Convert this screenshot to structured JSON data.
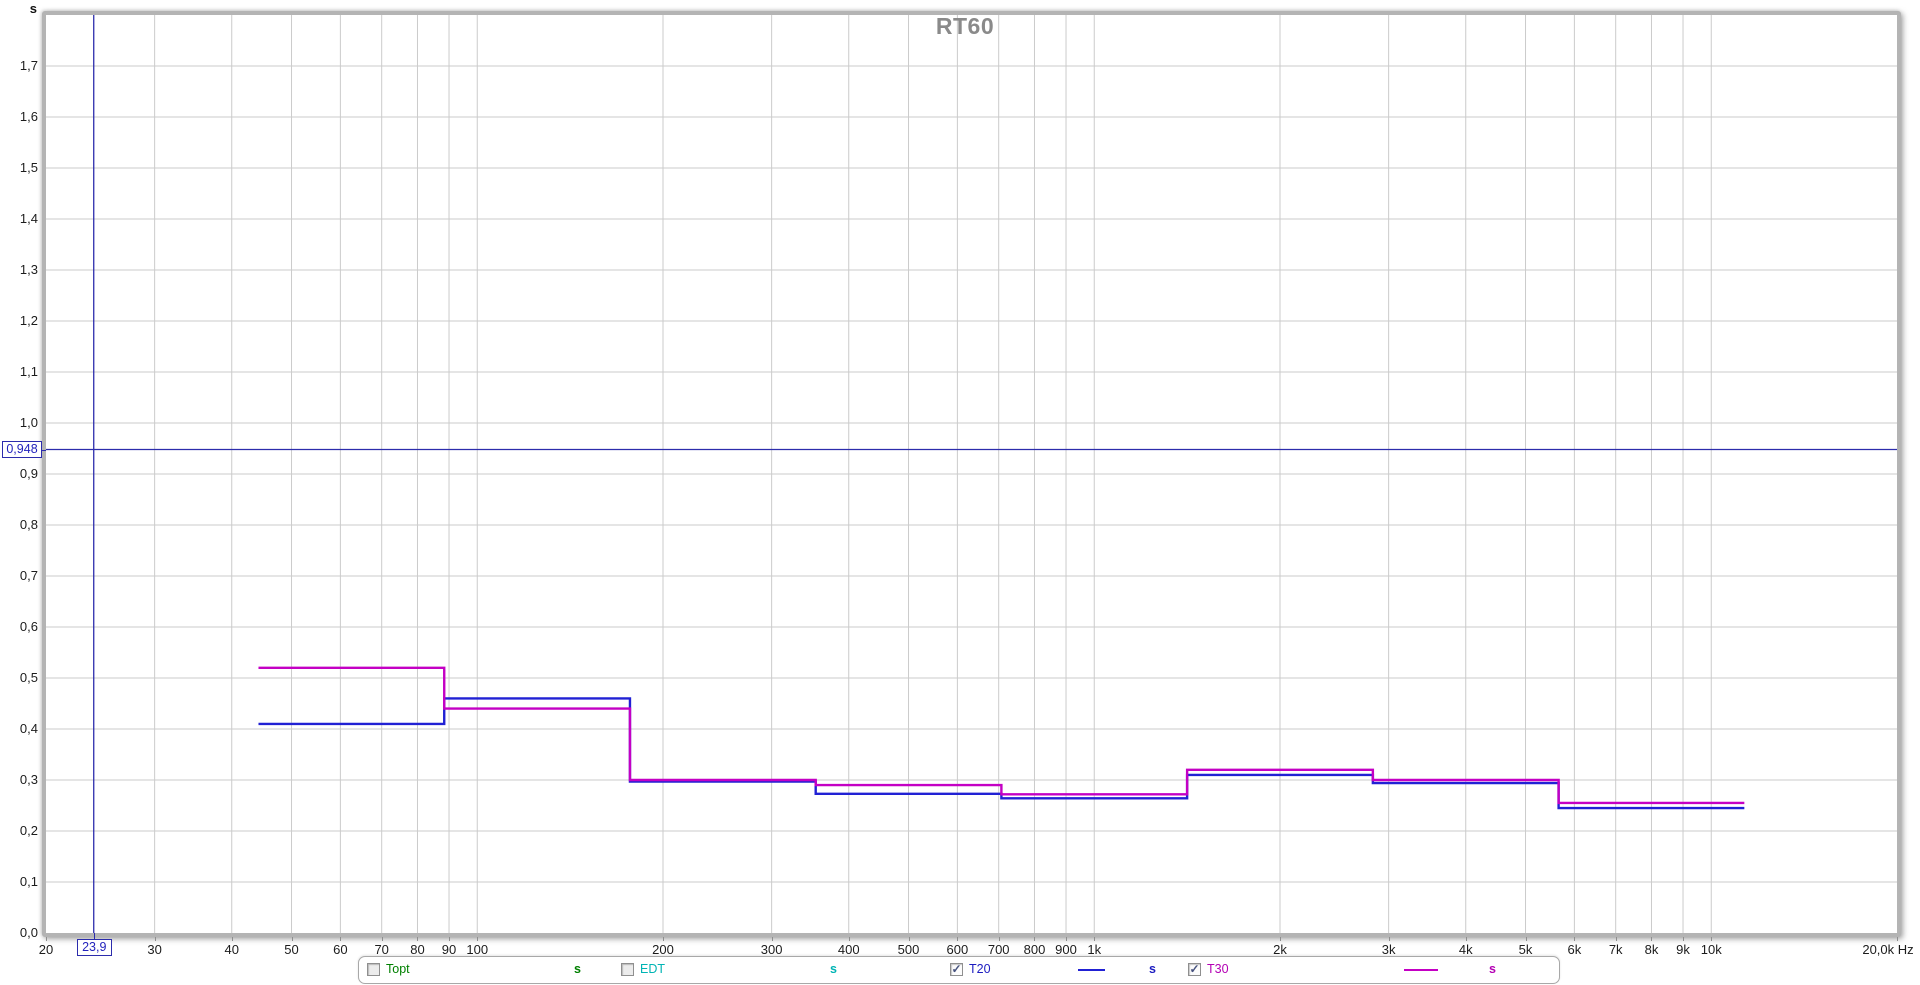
{
  "chart_data": {
    "type": "line",
    "title": "RT60",
    "title_color": "#8a8a8a",
    "y_axis_unit_label": "s",
    "x_axis_unit_label": "Hz",
    "x_scale": "log",
    "xlim_hz": [
      20,
      20000
    ],
    "ylim_s": [
      0,
      1.8
    ],
    "grid_color": "#cbcbcb",
    "grid": true,
    "y_ticks": [
      {
        "v": 0.0,
        "label": "0,0"
      },
      {
        "v": 0.1,
        "label": "0,1"
      },
      {
        "v": 0.2,
        "label": "0,2"
      },
      {
        "v": 0.3,
        "label": "0,3"
      },
      {
        "v": 0.4,
        "label": "0,4"
      },
      {
        "v": 0.5,
        "label": "0,5"
      },
      {
        "v": 0.6,
        "label": "0,6"
      },
      {
        "v": 0.7,
        "label": "0,7"
      },
      {
        "v": 0.8,
        "label": "0,8"
      },
      {
        "v": 0.9,
        "label": "0,9"
      },
      {
        "v": 1.0,
        "label": "1,0"
      },
      {
        "v": 1.1,
        "label": "1,1"
      },
      {
        "v": 1.2,
        "label": "1,2"
      },
      {
        "v": 1.3,
        "label": "1,3"
      },
      {
        "v": 1.4,
        "label": "1,4"
      },
      {
        "v": 1.5,
        "label": "1,5"
      },
      {
        "v": 1.6,
        "label": "1,6"
      },
      {
        "v": 1.7,
        "label": "1,7"
      }
    ],
    "x_ticks": [
      {
        "f": 20,
        "label": "20"
      },
      {
        "f": 30,
        "label": "30"
      },
      {
        "f": 40,
        "label": "40"
      },
      {
        "f": 50,
        "label": "50"
      },
      {
        "f": 60,
        "label": "60"
      },
      {
        "f": 70,
        "label": "70"
      },
      {
        "f": 80,
        "label": "80"
      },
      {
        "f": 90,
        "label": "90"
      },
      {
        "f": 100,
        "label": "100"
      },
      {
        "f": 200,
        "label": "200"
      },
      {
        "f": 300,
        "label": "300"
      },
      {
        "f": 400,
        "label": "400"
      },
      {
        "f": 500,
        "label": "500"
      },
      {
        "f": 600,
        "label": "600"
      },
      {
        "f": 700,
        "label": "700"
      },
      {
        "f": 800,
        "label": "800"
      },
      {
        "f": 900,
        "label": "900"
      },
      {
        "f": 1000,
        "label": "1k"
      },
      {
        "f": 2000,
        "label": "2k"
      },
      {
        "f": 3000,
        "label": "3k"
      },
      {
        "f": 4000,
        "label": "4k"
      },
      {
        "f": 5000,
        "label": "5k"
      },
      {
        "f": 6000,
        "label": "6k"
      },
      {
        "f": 7000,
        "label": "7k"
      },
      {
        "f": 8000,
        "label": "8k"
      },
      {
        "f": 9000,
        "label": "9k"
      },
      {
        "f": 10000,
        "label": "10k"
      },
      {
        "f": 20000,
        "label": "20,0k Hz"
      }
    ],
    "band_centers_hz": [
      63,
      125,
      250,
      500,
      1000,
      2000,
      4000,
      8000
    ],
    "band_edges_hz": [
      44.2,
      88.4,
      176.8,
      353.6,
      707.1,
      1414.2,
      2828.4,
      5656.9,
      11313.7
    ],
    "series": [
      {
        "name": "T20",
        "unit": "s",
        "color": "#2121d4",
        "values_s": [
          0.41,
          0.46,
          0.297,
          0.273,
          0.264,
          0.31,
          0.294,
          0.245
        ]
      },
      {
        "name": "T30",
        "unit": "s",
        "color": "#c400c4",
        "values_s": [
          0.52,
          0.44,
          0.3,
          0.29,
          0.272,
          0.32,
          0.3,
          0.255
        ]
      }
    ],
    "cursor": {
      "color": "#2c2cac",
      "freq_hz": 23.9,
      "freq_label": "23,9",
      "time_s": 0.948,
      "time_label": "0,948"
    }
  },
  "legend": {
    "items": [
      {
        "label": "Topt",
        "unit": "s",
        "checked": false,
        "color": "#008000",
        "show_line_sample": false,
        "line_color": "#008000"
      },
      {
        "label": "EDT",
        "unit": "s",
        "checked": false,
        "color": "#00b4b4",
        "show_line_sample": false,
        "line_color": "#00b4b4"
      },
      {
        "label": "T20",
        "unit": "s",
        "checked": true,
        "color": "#1c1cc0",
        "show_line_sample": true,
        "line_color": "#2121d4"
      },
      {
        "label": "T30",
        "unit": "s",
        "checked": true,
        "color": "#b400b4",
        "show_line_sample": true,
        "line_color": "#c400c4"
      }
    ]
  }
}
